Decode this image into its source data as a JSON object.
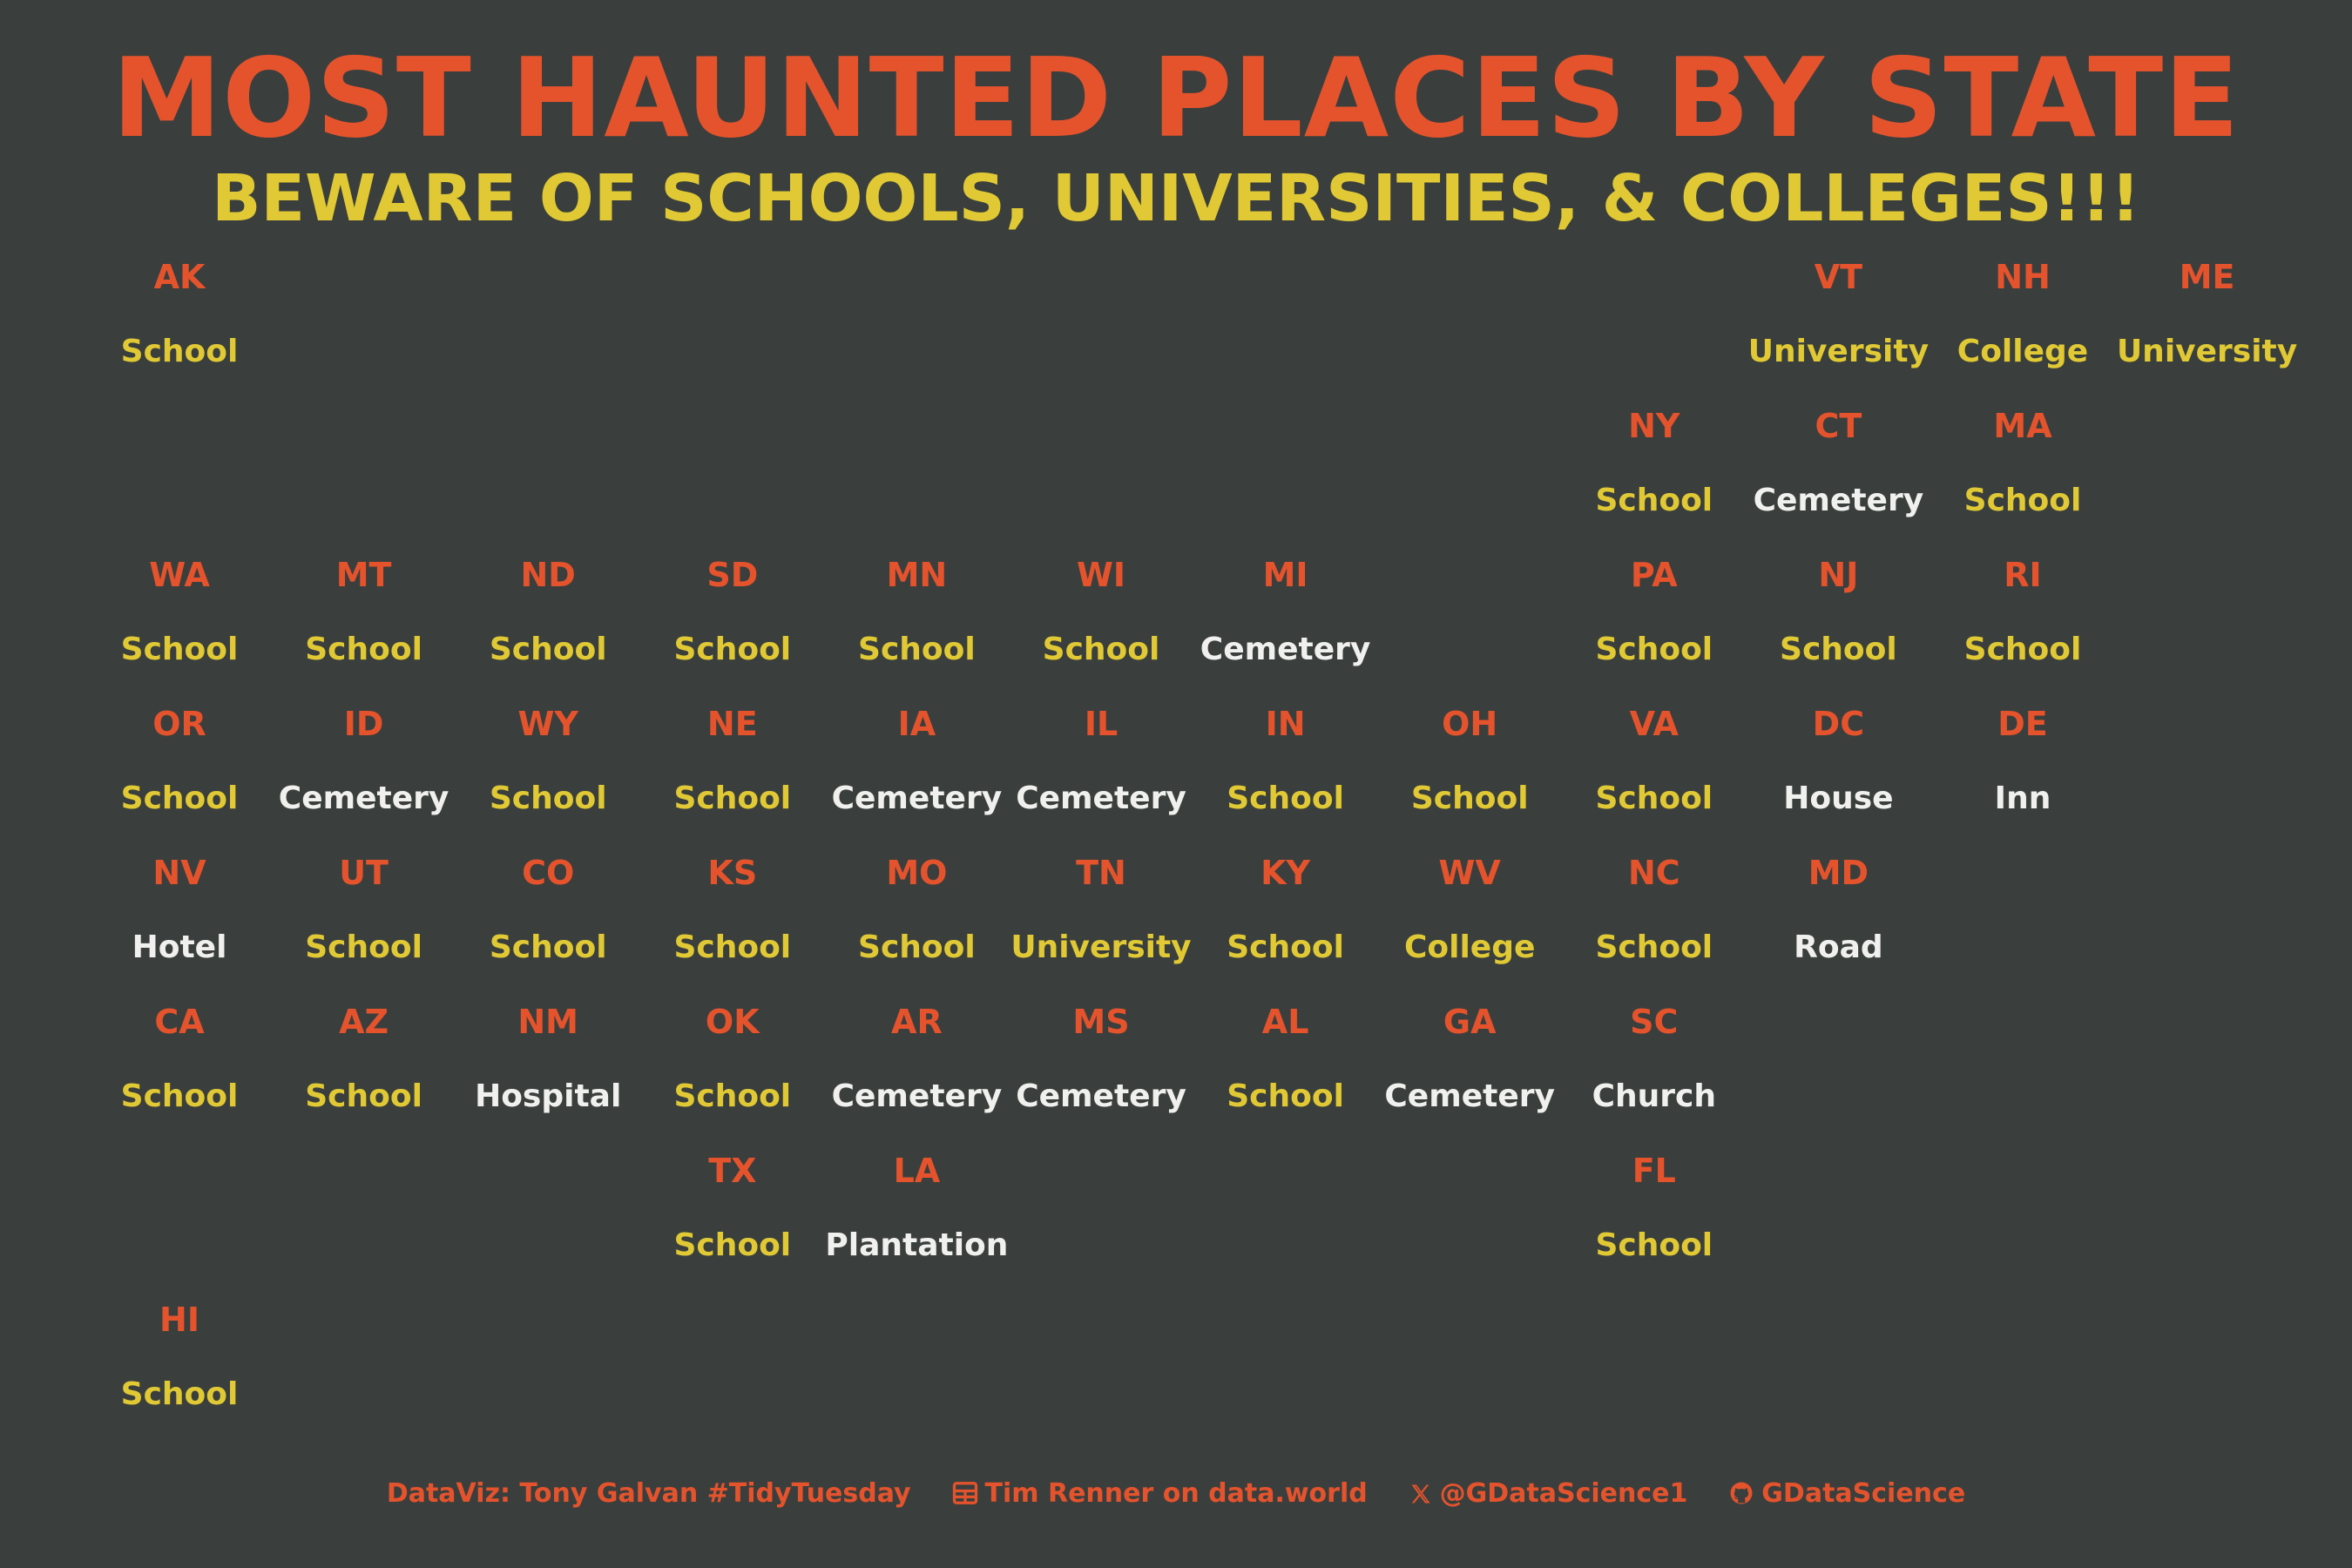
{
  "title": "MOST HAUNTED PLACES BY STATE",
  "subtitle": "BEWARE OF SCHOOLS, UNIVERSITIES, & COLLEGES!!!",
  "colors": {
    "background": "#3a3f3d",
    "accent_orange": "#e5532d",
    "highlight_yellow": "#e0c934",
    "other_white": "#f0f0ee"
  },
  "credits": {
    "author": "DataViz: Tony Galvan #TidyTuesday",
    "source": "Tim Renner on data.world",
    "twitter": "@GDataScience1",
    "github": "GDataScience"
  },
  "chart_data": {
    "type": "table",
    "title": "MOST HAUNTED PLACES BY STATE",
    "subtitle": "BEWARE OF SCHOOLS, UNIVERSITIES, & COLLEGES!!!",
    "highlighted_categories": [
      "School",
      "University",
      "College"
    ],
    "states": [
      {
        "abbr": "AK",
        "place": "School",
        "row": 0,
        "col": 0
      },
      {
        "abbr": "VT",
        "place": "University",
        "row": 0,
        "col": 9
      },
      {
        "abbr": "NH",
        "place": "College",
        "row": 0,
        "col": 10
      },
      {
        "abbr": "ME",
        "place": "University",
        "row": 0,
        "col": 11
      },
      {
        "abbr": "NY",
        "place": "School",
        "row": 1,
        "col": 8
      },
      {
        "abbr": "CT",
        "place": "Cemetery",
        "row": 1,
        "col": 9
      },
      {
        "abbr": "MA",
        "place": "School",
        "row": 1,
        "col": 10
      },
      {
        "abbr": "WA",
        "place": "School",
        "row": 2,
        "col": 0
      },
      {
        "abbr": "MT",
        "place": "School",
        "row": 2,
        "col": 1
      },
      {
        "abbr": "ND",
        "place": "School",
        "row": 2,
        "col": 2
      },
      {
        "abbr": "SD",
        "place": "School",
        "row": 2,
        "col": 3
      },
      {
        "abbr": "MN",
        "place": "School",
        "row": 2,
        "col": 4
      },
      {
        "abbr": "WI",
        "place": "School",
        "row": 2,
        "col": 5
      },
      {
        "abbr": "MI",
        "place": "Cemetery",
        "row": 2,
        "col": 6
      },
      {
        "abbr": "PA",
        "place": "School",
        "row": 2,
        "col": 8
      },
      {
        "abbr": "NJ",
        "place": "School",
        "row": 2,
        "col": 9
      },
      {
        "abbr": "RI",
        "place": "School",
        "row": 2,
        "col": 10
      },
      {
        "abbr": "OR",
        "place": "School",
        "row": 3,
        "col": 0
      },
      {
        "abbr": "ID",
        "place": "Cemetery",
        "row": 3,
        "col": 1
      },
      {
        "abbr": "WY",
        "place": "School",
        "row": 3,
        "col": 2
      },
      {
        "abbr": "NE",
        "place": "School",
        "row": 3,
        "col": 3
      },
      {
        "abbr": "IA",
        "place": "Cemetery",
        "row": 3,
        "col": 4
      },
      {
        "abbr": "IL",
        "place": "Cemetery",
        "row": 3,
        "col": 5
      },
      {
        "abbr": "IN",
        "place": "School",
        "row": 3,
        "col": 6
      },
      {
        "abbr": "OH",
        "place": "School",
        "row": 3,
        "col": 7
      },
      {
        "abbr": "VA",
        "place": "School",
        "row": 3,
        "col": 8
      },
      {
        "abbr": "DC",
        "place": "House",
        "row": 3,
        "col": 9
      },
      {
        "abbr": "DE",
        "place": "Inn",
        "row": 3,
        "col": 10
      },
      {
        "abbr": "NV",
        "place": "Hotel",
        "row": 4,
        "col": 0
      },
      {
        "abbr": "UT",
        "place": "School",
        "row": 4,
        "col": 1
      },
      {
        "abbr": "CO",
        "place": "School",
        "row": 4,
        "col": 2
      },
      {
        "abbr": "KS",
        "place": "School",
        "row": 4,
        "col": 3
      },
      {
        "abbr": "MO",
        "place": "School",
        "row": 4,
        "col": 4
      },
      {
        "abbr": "TN",
        "place": "University",
        "row": 4,
        "col": 5
      },
      {
        "abbr": "KY",
        "place": "School",
        "row": 4,
        "col": 6
      },
      {
        "abbr": "WV",
        "place": "College",
        "row": 4,
        "col": 7
      },
      {
        "abbr": "NC",
        "place": "School",
        "row": 4,
        "col": 8
      },
      {
        "abbr": "MD",
        "place": "Road",
        "row": 4,
        "col": 9
      },
      {
        "abbr": "CA",
        "place": "School",
        "row": 5,
        "col": 0
      },
      {
        "abbr": "AZ",
        "place": "School",
        "row": 5,
        "col": 1
      },
      {
        "abbr": "NM",
        "place": "Hospital",
        "row": 5,
        "col": 2
      },
      {
        "abbr": "OK",
        "place": "School",
        "row": 5,
        "col": 3
      },
      {
        "abbr": "AR",
        "place": "Cemetery",
        "row": 5,
        "col": 4
      },
      {
        "abbr": "MS",
        "place": "Cemetery",
        "row": 5,
        "col": 5
      },
      {
        "abbr": "AL",
        "place": "School",
        "row": 5,
        "col": 6
      },
      {
        "abbr": "GA",
        "place": "Cemetery",
        "row": 5,
        "col": 7
      },
      {
        "abbr": "SC",
        "place": "Church",
        "row": 5,
        "col": 8
      },
      {
        "abbr": "TX",
        "place": "School",
        "row": 6,
        "col": 3
      },
      {
        "abbr": "LA",
        "place": "Plantation",
        "row": 6,
        "col": 4
      },
      {
        "abbr": "FL",
        "place": "School",
        "row": 6,
        "col": 8
      },
      {
        "abbr": "HI",
        "place": "School",
        "row": 7,
        "col": 0
      }
    ]
  }
}
